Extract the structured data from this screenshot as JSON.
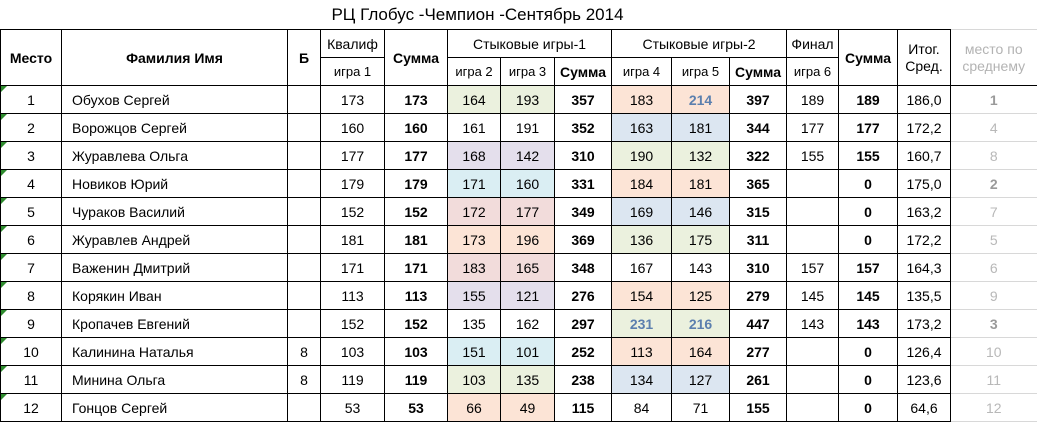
{
  "title": "РЦ Глобус -Чемпион -Сентябрь 2014",
  "header": {
    "place": "Место",
    "name": "Фамилия Имя",
    "b": "Б",
    "qualif": "Квалиф",
    "game1": "игра 1",
    "sum1": "Сумма",
    "stage1": "Стыковые игры-1",
    "game2": "игра 2",
    "game3": "игра 3",
    "sum2": "Сумма",
    "stage2": "Стыковые игры-2",
    "game4": "игра 4",
    "game5": "игра 5",
    "sum3": "Сумма",
    "final": "Финал",
    "game6": "игра 6",
    "sum4": "Сумма",
    "total_avg": "Итог. Сред.",
    "avg_rank": "место по среднему"
  },
  "rows": [
    {
      "place": "1",
      "name": "Обухов Сергей",
      "b": "",
      "g1": "173",
      "s1": "173",
      "g2": "164",
      "g3": "193",
      "s2": "357",
      "g4": "183",
      "g5": "214",
      "s3": "397",
      "g6": "189",
      "s4": "189",
      "avg": "186,0",
      "rank": "1"
    },
    {
      "place": "2",
      "name": "Ворожцов Сергей",
      "b": "",
      "g1": "160",
      "s1": "160",
      "g2": "161",
      "g3": "191",
      "s2": "352",
      "g4": "163",
      "g5": "181",
      "s3": "344",
      "g6": "177",
      "s4": "177",
      "avg": "172,2",
      "rank": "4"
    },
    {
      "place": "3",
      "name": "Журавлева Ольга",
      "b": "",
      "g1": "177",
      "s1": "177",
      "g2": "168",
      "g3": "142",
      "s2": "310",
      "g4": "190",
      "g5": "132",
      "s3": "322",
      "g6": "155",
      "s4": "155",
      "avg": "160,7",
      "rank": "8"
    },
    {
      "place": "4",
      "name": "Новиков Юрий",
      "b": "",
      "g1": "179",
      "s1": "179",
      "g2": "171",
      "g3": "160",
      "s2": "331",
      "g4": "184",
      "g5": "181",
      "s3": "365",
      "g6": "",
      "s4": "0",
      "avg": "175,0",
      "rank": "2"
    },
    {
      "place": "5",
      "name": "Чураков Василий",
      "b": "",
      "g1": "152",
      "s1": "152",
      "g2": "172",
      "g3": "177",
      "s2": "349",
      "g4": "169",
      "g5": "146",
      "s3": "315",
      "g6": "",
      "s4": "0",
      "avg": "163,2",
      "rank": "7"
    },
    {
      "place": "6",
      "name": "Журавлев Андрей",
      "b": "",
      "g1": "181",
      "s1": "181",
      "g2": "173",
      "g3": "196",
      "s2": "369",
      "g4": "136",
      "g5": "175",
      "s3": "311",
      "g6": "",
      "s4": "0",
      "avg": "172,2",
      "rank": "5"
    },
    {
      "place": "7",
      "name": "Важенин Дмитрий",
      "b": "",
      "g1": "171",
      "s1": "171",
      "g2": "183",
      "g3": "165",
      "s2": "348",
      "g4": "167",
      "g5": "143",
      "s3": "310",
      "g6": "157",
      "s4": "157",
      "avg": "164,3",
      "rank": "6"
    },
    {
      "place": "8",
      "name": "Корякин Иван",
      "b": "",
      "g1": "113",
      "s1": "113",
      "g2": "155",
      "g3": "121",
      "s2": "276",
      "g4": "154",
      "g5": "125",
      "s3": "279",
      "g6": "145",
      "s4": "145",
      "avg": "135,5",
      "rank": "9"
    },
    {
      "place": "9",
      "name": "Кропачев Евгений",
      "b": "",
      "g1": "152",
      "s1": "152",
      "g2": "135",
      "g3": "162",
      "s2": "297",
      "g4": "231",
      "g5": "216",
      "s3": "447",
      "g6": "143",
      "s4": "143",
      "avg": "173,2",
      "rank": "3"
    },
    {
      "place": "10",
      "name": "Калинина Наталья",
      "b": "8",
      "g1": "103",
      "s1": "103",
      "g2": "151",
      "g3": "101",
      "s2": "252",
      "g4": "113",
      "g5": "164",
      "s3": "277",
      "g6": "",
      "s4": "0",
      "avg": "126,4",
      "rank": "10"
    },
    {
      "place": "11",
      "name": "Минина Ольга",
      "b": "8",
      "g1": "119",
      "s1": "119",
      "g2": "103",
      "g3": "135",
      "s2": "238",
      "g4": "134",
      "g5": "127",
      "s3": "261",
      "g6": "",
      "s4": "0",
      "avg": "123,6",
      "rank": "11"
    },
    {
      "place": "12",
      "name": "Гонцов Сергей",
      "b": "",
      "g1": "53",
      "s1": "53",
      "g2": "66",
      "g3": "49",
      "s2": "115",
      "g4": "84",
      "g5": "71",
      "s3": "155",
      "g6": "",
      "s4": "0",
      "avg": "64,6",
      "rank": "12"
    }
  ],
  "colors": {
    "green": "#ebf1de",
    "orange": "#fce4d6",
    "blue": "#dce6f1",
    "purple": "#e4dfec",
    "pink": "#f2dcdb",
    "teal": "#daeef3",
    "highlight_text": "#5b7fae"
  }
}
